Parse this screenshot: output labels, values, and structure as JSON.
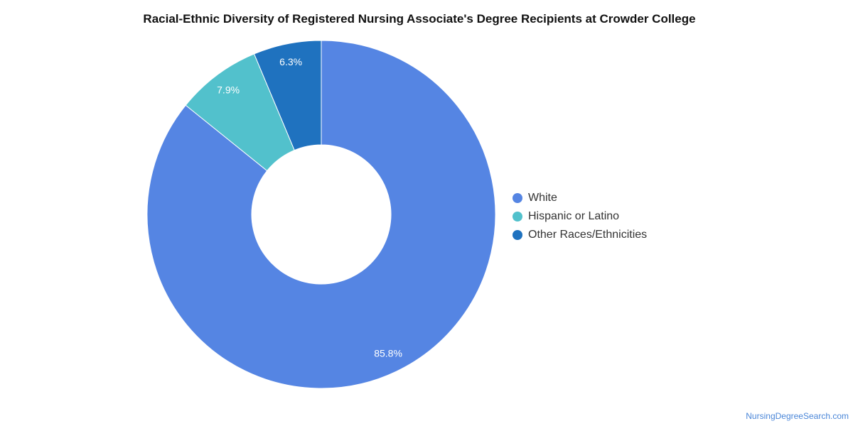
{
  "title": "Racial-Ethnic Diversity of Registered Nursing Associate's Degree Recipients at Crowder College",
  "credit": "NursingDegreeSearch.com",
  "chart_data": {
    "type": "pie",
    "style": "donut",
    "title": "Racial-Ethnic Diversity of Registered Nursing Associate's Degree Recipients at Crowder College",
    "legend_position": "right",
    "slices": [
      {
        "name": "White",
        "value": 85.8,
        "label": "85.8%",
        "color": "#5585e3"
      },
      {
        "name": "Hispanic or Latino",
        "value": 7.9,
        "label": "7.9%",
        "color": "#52c1cc"
      },
      {
        "name": "Other Races/Ethnicities",
        "value": 6.3,
        "label": "6.3%",
        "color": "#1f72bf"
      }
    ]
  }
}
